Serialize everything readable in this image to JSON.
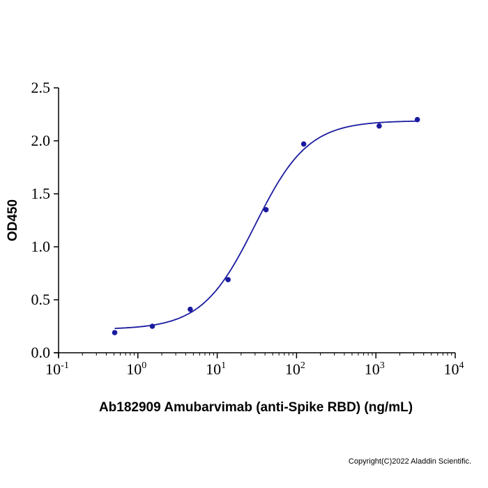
{
  "chart_data": {
    "type": "scatter",
    "title": "",
    "xlabel": "Ab182909 Amubarvimab (anti-Spike RBD) (ng/mL)",
    "ylabel": "OD450",
    "x_scale": "log",
    "xlim": [
      0.1,
      10000
    ],
    "ylim": [
      0,
      2.5
    ],
    "x_ticks": [
      {
        "base": "10",
        "exp": "-1",
        "value": 0.1
      },
      {
        "base": "10",
        "exp": "0",
        "value": 1
      },
      {
        "base": "10",
        "exp": "1",
        "value": 10
      },
      {
        "base": "10",
        "exp": "2",
        "value": 100
      },
      {
        "base": "10",
        "exp": "3",
        "value": 1000
      },
      {
        "base": "10",
        "exp": "4",
        "value": 10000
      }
    ],
    "y_ticks": [
      "0.0",
      "0.5",
      "1.0",
      "1.5",
      "2.0",
      "2.5"
    ],
    "grid": false,
    "series": [
      {
        "points": [
          {
            "x": 0.51,
            "y": 0.19
          },
          {
            "x": 1.52,
            "y": 0.25
          },
          {
            "x": 4.57,
            "y": 0.41
          },
          {
            "x": 13.7,
            "y": 0.69
          },
          {
            "x": 41.2,
            "y": 1.35
          },
          {
            "x": 123,
            "y": 1.97
          },
          {
            "x": 1100,
            "y": 2.14
          },
          {
            "x": 3330,
            "y": 2.2
          }
        ],
        "fit": {
          "model": "4PL",
          "bottom": 0.22,
          "top": 2.19,
          "ec50": 30,
          "hill": 1.3
        }
      }
    ],
    "colors": {
      "series": "#1a1aa0",
      "axis": "#000000"
    }
  },
  "footer": {
    "copyright": "Copyright(C)2022 Aladdin Scientific."
  }
}
